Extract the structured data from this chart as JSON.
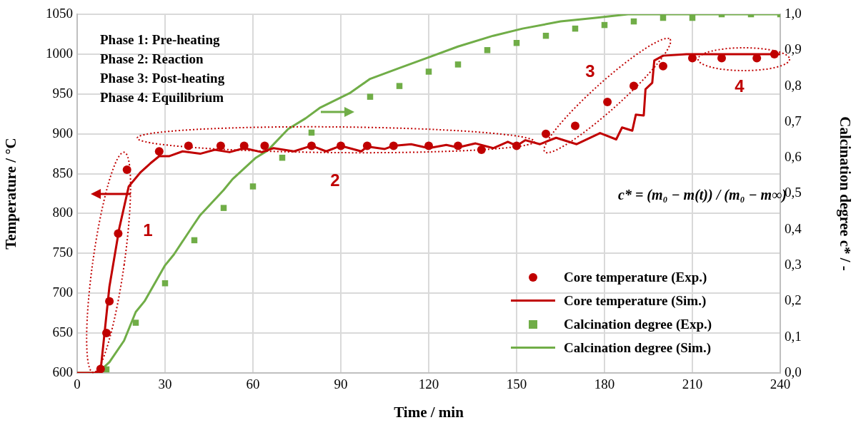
{
  "chart_data": {
    "type": "line",
    "xlabel": "Time / min",
    "ylabel": "Temperature / °C",
    "y2label": "Calcination degree c* / -",
    "xlim": [
      0,
      240
    ],
    "xticks": [
      0,
      30,
      60,
      90,
      120,
      150,
      180,
      210,
      240
    ],
    "ylim": [
      600,
      1050
    ],
    "yticks": [
      600,
      650,
      700,
      750,
      800,
      850,
      900,
      950,
      1000,
      1050
    ],
    "y2lim": [
      0,
      1
    ],
    "y2ticks": [
      {
        "value": 0,
        "label": "0,0"
      },
      {
        "value": 0.1,
        "label": "0,1"
      },
      {
        "value": 0.2,
        "label": "0,2"
      },
      {
        "value": 0.3,
        "label": "0,3"
      },
      {
        "value": 0.4,
        "label": "0,4"
      },
      {
        "value": 0.5,
        "label": "0,5"
      },
      {
        "value": 0.6,
        "label": "0,6"
      },
      {
        "value": 0.7,
        "label": "0,7"
      },
      {
        "value": 0.8,
        "label": "0,8"
      },
      {
        "value": 0.9,
        "label": "0,9"
      },
      {
        "value": 1,
        "label": "1,0"
      }
    ],
    "grid": true,
    "legend": "bottom right",
    "series": [
      {
        "name": "Core temperature (Exp.)",
        "type": "scatter",
        "marker": "circle",
        "color": "#c00000",
        "x": [
          8,
          10,
          11,
          14,
          17,
          28,
          38,
          49,
          57,
          64,
          80,
          90,
          99,
          108,
          120,
          130,
          138,
          150,
          160,
          170,
          181,
          190,
          200,
          210,
          220,
          232,
          238
        ],
        "values": [
          605,
          650,
          690,
          775,
          855,
          878,
          885,
          885,
          885,
          885,
          885,
          885,
          885,
          885,
          885,
          885,
          880,
          885,
          900,
          910,
          940,
          960,
          985,
          995,
          995,
          995,
          1000
        ]
      },
      {
        "name": "Core temperature (Sim.)",
        "type": "line",
        "marker": "none",
        "color": "#c00000",
        "x": [
          0,
          6,
          8,
          11,
          14.4,
          17.6,
          21.7,
          25,
          28,
          31.5,
          36,
          42,
          47,
          52,
          57,
          63,
          67,
          74,
          80,
          85,
          90,
          97,
          99,
          105,
          108,
          114,
          120,
          126,
          130,
          136,
          142,
          147,
          150,
          153,
          158,
          162,
          163.5,
          170.5,
          178.5,
          184,
          186,
          189.5,
          190.7,
          193.4,
          194,
          196.3,
          197,
          200,
          208,
          240
        ],
        "values": [
          600,
          600,
          603,
          708,
          782,
          834,
          852,
          863,
          872,
          872,
          878,
          875,
          880,
          877,
          882,
          877,
          882,
          878,
          885,
          878,
          885,
          878,
          884,
          881,
          885,
          887,
          882,
          886,
          883,
          888,
          882,
          890,
          885,
          892,
          887,
          893,
          895,
          887,
          901,
          893,
          908,
          904,
          924,
          923,
          956,
          964,
          992,
          998,
          1000,
          1000
        ]
      },
      {
        "name": "Calcination degree (Exp.)",
        "type": "scatter",
        "marker": "square",
        "axis": "y2",
        "color": "#70ad47",
        "x": [
          10,
          20,
          30,
          40,
          50,
          60,
          70,
          80,
          100,
          110,
          120,
          130,
          140,
          150,
          160,
          170,
          180,
          190,
          200,
          210,
          220,
          230,
          240
        ],
        "values": [
          0.01,
          0.14,
          0.25,
          0.37,
          0.46,
          0.52,
          0.6,
          0.67,
          0.77,
          0.8,
          0.84,
          0.86,
          0.9,
          0.92,
          0.94,
          0.96,
          0.97,
          0.98,
          0.99,
          0.99,
          1,
          1,
          1
        ]
      },
      {
        "name": "Calcination degree (Sim.)",
        "type": "line",
        "marker": "none",
        "axis": "y2",
        "color": "#70ad47",
        "x": [
          0,
          7,
          11,
          16,
          20,
          23,
          30,
          33,
          39.5,
          42,
          50,
          53,
          61,
          65,
          72,
          78,
          83,
          93,
          100,
          110,
          120,
          130,
          142,
          152,
          165,
          177,
          188,
          200,
          240
        ],
        "values": [
          0,
          0,
          0.03,
          0.09,
          0.17,
          0.2,
          0.3,
          0.33,
          0.41,
          0.44,
          0.51,
          0.54,
          0.6,
          0.62,
          0.68,
          0.71,
          0.74,
          0.78,
          0.82,
          0.85,
          0.88,
          0.91,
          0.94,
          0.96,
          0.98,
          0.99,
          1,
          1,
          1
        ]
      }
    ],
    "annotations": [
      "Phase 1: Pre-heating",
      "Phase 2: Reaction",
      "Phase 3: Post-heating",
      "Phase 4: Equilibrium",
      "c* = (m₀ − m(t)) / (m₀ − m∞)",
      "1",
      "2",
      "3",
      "4"
    ]
  }
}
